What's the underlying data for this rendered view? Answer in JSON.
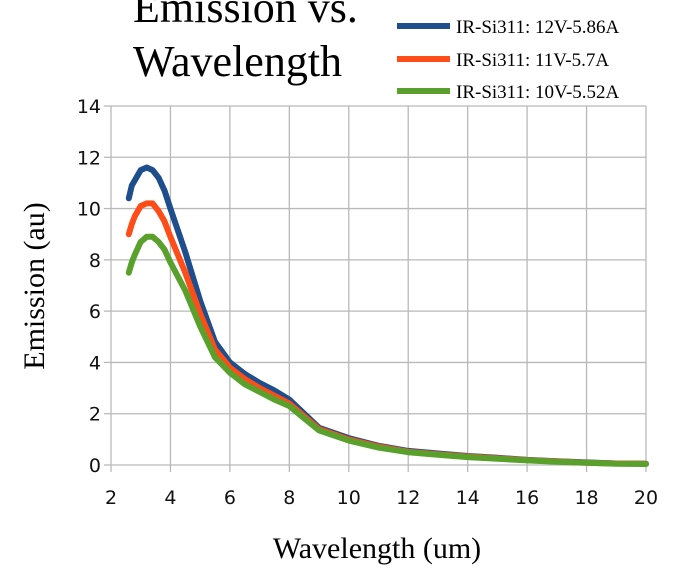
{
  "chart_data": {
    "type": "line",
    "title_lines": [
      "Emission vs.",
      "Wavelength"
    ],
    "xlabel": "Wavelength (um)",
    "ylabel": "Emission (au)",
    "xlim": [
      2,
      20
    ],
    "ylim": [
      0,
      14
    ],
    "xticks": [
      2,
      4,
      6,
      8,
      10,
      12,
      14,
      16,
      18,
      20
    ],
    "yticks": [
      0,
      2,
      4,
      6,
      8,
      10,
      12,
      14
    ],
    "grid": true,
    "legend_position": "top-right",
    "series": [
      {
        "name": "IR-Si311: 12V-5.86A",
        "color": "#1f4e8c",
        "x": [
          2.6,
          2.7,
          2.8,
          3.0,
          3.2,
          3.4,
          3.6,
          3.8,
          4.0,
          4.5,
          5.0,
          5.5,
          6.0,
          6.5,
          7.0,
          7.5,
          8.0,
          8.5,
          9.0,
          10.0,
          11.0,
          12.0,
          13.0,
          14.0,
          15.0,
          16.0,
          17.0,
          18.0,
          19.0,
          20.0
        ],
        "y": [
          10.4,
          10.9,
          11.1,
          11.5,
          11.6,
          11.5,
          11.2,
          10.7,
          10.0,
          8.3,
          6.4,
          4.8,
          4.0,
          3.55,
          3.2,
          2.9,
          2.55,
          2.0,
          1.45,
          1.05,
          0.75,
          0.55,
          0.45,
          0.35,
          0.28,
          0.2,
          0.15,
          0.1,
          0.06,
          0.05
        ]
      },
      {
        "name": "IR-Si311: 11V-5.7A",
        "color": "#ff4d1a",
        "x": [
          2.6,
          2.7,
          2.8,
          3.0,
          3.2,
          3.4,
          3.6,
          3.8,
          4.0,
          4.5,
          5.0,
          5.5,
          6.0,
          6.5,
          7.0,
          7.5,
          8.0,
          8.5,
          9.0,
          10.0,
          11.0,
          12.0,
          13.0,
          14.0,
          15.0,
          16.0,
          17.0,
          18.0,
          19.0,
          20.0
        ],
        "y": [
          9.0,
          9.4,
          9.7,
          10.1,
          10.2,
          10.2,
          9.9,
          9.5,
          8.9,
          7.5,
          5.9,
          4.5,
          3.8,
          3.35,
          3.0,
          2.7,
          2.4,
          1.9,
          1.4,
          1.0,
          0.72,
          0.52,
          0.42,
          0.33,
          0.26,
          0.19,
          0.14,
          0.09,
          0.06,
          0.05
        ]
      },
      {
        "name": "IR-Si311: 10V-5.52A",
        "color": "#5aa02c",
        "x": [
          2.6,
          2.7,
          2.8,
          3.0,
          3.2,
          3.4,
          3.6,
          3.8,
          4.0,
          4.5,
          5.0,
          5.5,
          6.0,
          6.5,
          7.0,
          7.5,
          8.0,
          8.5,
          9.0,
          10.0,
          11.0,
          12.0,
          13.0,
          14.0,
          15.0,
          16.0,
          17.0,
          18.0,
          19.0,
          20.0
        ],
        "y": [
          7.5,
          7.9,
          8.2,
          8.7,
          8.9,
          8.9,
          8.7,
          8.4,
          7.9,
          6.8,
          5.4,
          4.2,
          3.6,
          3.15,
          2.85,
          2.55,
          2.3,
          1.82,
          1.35,
          0.95,
          0.68,
          0.5,
          0.4,
          0.31,
          0.24,
          0.18,
          0.13,
          0.09,
          0.05,
          0.04
        ]
      }
    ]
  }
}
